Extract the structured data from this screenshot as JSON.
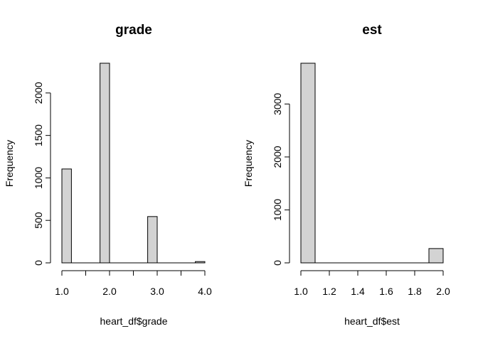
{
  "chart_data": [
    {
      "type": "bar",
      "title": "grade",
      "xlabel": "heart_df$grade",
      "ylabel": "Frequency",
      "xlim": [
        1.0,
        4.0
      ],
      "ylim": [
        0,
        2350
      ],
      "x_ticks": [
        1.0,
        1.5,
        2.0,
        2.5,
        3.0,
        3.5,
        4.0
      ],
      "x_tick_labels": [
        "1.0",
        "",
        "2.0",
        "",
        "3.0",
        "",
        "4.0"
      ],
      "y_ticks": [
        0,
        500,
        1000,
        1500,
        2000
      ],
      "y_tick_labels": [
        "0",
        "500",
        "1000",
        "1500",
        "2000"
      ],
      "bins": [
        {
          "x0": 1.0,
          "x1": 1.2,
          "value": 1105
        },
        {
          "x0": 1.8,
          "x1": 2.0,
          "value": 2350
        },
        {
          "x0": 2.8,
          "x1": 3.0,
          "value": 545
        },
        {
          "x0": 3.8,
          "x1": 4.0,
          "value": 15
        }
      ]
    },
    {
      "type": "bar",
      "title": "est",
      "xlabel": "heart_df$est",
      "ylabel": "Frequency",
      "xlim": [
        1.0,
        2.0
      ],
      "ylim": [
        0,
        3770
      ],
      "x_ticks": [
        1.0,
        1.2,
        1.4,
        1.6,
        1.8,
        2.0
      ],
      "x_tick_labels": [
        "1.0",
        "1.2",
        "1.4",
        "1.6",
        "1.8",
        "2.0"
      ],
      "y_ticks": [
        0,
        1000,
        2000,
        3000
      ],
      "y_tick_labels": [
        "0",
        "1000",
        "2000",
        "3000"
      ],
      "bins": [
        {
          "x0": 1.0,
          "x1": 1.1,
          "value": 3770
        },
        {
          "x0": 1.9,
          "x1": 2.0,
          "value": 270
        }
      ]
    }
  ],
  "colors": {
    "bar_fill": "#d3d3d3",
    "bar_stroke": "#000000"
  }
}
